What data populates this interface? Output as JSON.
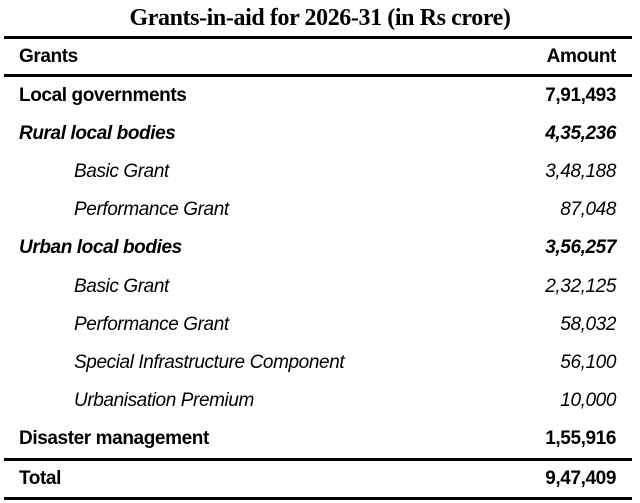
{
  "title": "Grants-in-aid for 2026-31 (in Rs crore)",
  "header": {
    "grants": "Grants",
    "amount": "Amount"
  },
  "rows": [
    {
      "label": "Local governments",
      "amount": "7,91,493",
      "style": "bold"
    },
    {
      "label": "Rural local bodies",
      "amount": "4,35,236",
      "style": "bold-italic"
    },
    {
      "label": "Basic Grant",
      "amount": "3,48,188",
      "style": "italic-sub"
    },
    {
      "label": "Performance Grant",
      "amount": "87,048",
      "style": "italic-sub"
    },
    {
      "label": "Urban local bodies",
      "amount": "3,56,257",
      "style": "bold-italic"
    },
    {
      "label": "Basic Grant",
      "amount": "2,32,125",
      "style": "italic-sub"
    },
    {
      "label": "Performance Grant",
      "amount": "58,032",
      "style": "italic-sub"
    },
    {
      "label": "Special Infrastructure Component",
      "amount": "56,100",
      "style": "italic-sub"
    },
    {
      "label": "Urbanisation Premium",
      "amount": "10,000",
      "style": "italic-sub"
    },
    {
      "label": "Disaster management",
      "amount": "1,55,916",
      "style": "bold"
    }
  ],
  "total": {
    "label": "Total",
    "amount": "9,47,409"
  }
}
